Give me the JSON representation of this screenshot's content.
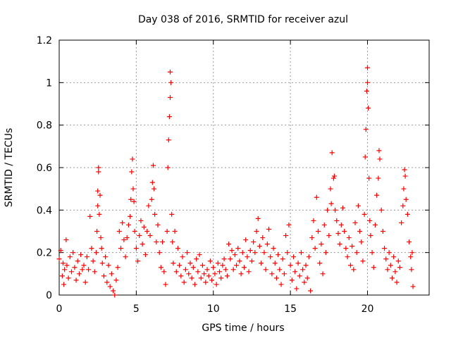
{
  "chart_data": {
    "type": "scatter",
    "title": "Day 038 of 2016, SRMTID for receiver azul",
    "xlabel": "GPS time / hours",
    "ylabel": "SRMTID / TECUs",
    "xlim": [
      0,
      24
    ],
    "ylim": [
      0,
      1.2
    ],
    "xticks": [
      0,
      5,
      10,
      15,
      20
    ],
    "yticks": [
      0,
      0.2,
      0.4,
      0.6,
      0.8,
      1,
      1.2
    ],
    "xtick_labels": [
      "0",
      "5",
      "10",
      "15",
      "20"
    ],
    "ytick_labels": [
      "0",
      "0.2",
      "0.4",
      "0.6",
      "0.8",
      "1",
      "1.2"
    ],
    "grid": true,
    "marker": "+",
    "colors": {
      "series": "#ff0000",
      "grid": "#999999",
      "axis": "#000000"
    },
    "series": [
      {
        "name": "SRMTID",
        "points": [
          [
            0.0,
            0.17
          ],
          [
            0.1,
            0.21
          ],
          [
            0.2,
            0.09
          ],
          [
            0.25,
            0.15
          ],
          [
            0.3,
            0.05
          ],
          [
            0.35,
            0.12
          ],
          [
            0.45,
            0.26
          ],
          [
            0.5,
            0.14
          ],
          [
            0.6,
            0.08
          ],
          [
            0.7,
            0.18
          ],
          [
            0.8,
            0.11
          ],
          [
            0.9,
            0.2
          ],
          [
            1.0,
            0.13
          ],
          [
            1.1,
            0.07
          ],
          [
            1.2,
            0.16
          ],
          [
            1.3,
            0.1
          ],
          [
            1.4,
            0.19
          ],
          [
            1.5,
            0.12
          ],
          [
            1.6,
            0.14
          ],
          [
            1.7,
            0.06
          ],
          [
            1.8,
            0.18
          ],
          [
            1.9,
            0.12
          ],
          [
            2.0,
            0.37
          ],
          [
            2.1,
            0.22
          ],
          [
            2.2,
            0.16
          ],
          [
            2.3,
            0.11
          ],
          [
            2.4,
            0.2
          ],
          [
            2.45,
            0.3
          ],
          [
            2.5,
            0.42
          ],
          [
            2.5,
            0.49
          ],
          [
            2.55,
            0.6
          ],
          [
            2.55,
            0.58
          ],
          [
            2.6,
            0.38
          ],
          [
            2.65,
            0.47
          ],
          [
            2.7,
            0.27
          ],
          [
            2.75,
            0.22
          ],
          [
            2.8,
            0.15
          ],
          [
            2.9,
            0.09
          ],
          [
            3.0,
            0.18
          ],
          [
            3.1,
            0.06
          ],
          [
            3.2,
            0.14
          ],
          [
            3.3,
            0.04
          ],
          [
            3.4,
            0.1
          ],
          [
            3.5,
            0.02
          ],
          [
            3.6,
            0.0
          ],
          [
            3.7,
            0.07
          ],
          [
            3.8,
            0.13
          ],
          [
            3.9,
            0.3
          ],
          [
            4.0,
            0.22
          ],
          [
            4.1,
            0.34
          ],
          [
            4.2,
            0.26
          ],
          [
            4.3,
            0.18
          ],
          [
            4.4,
            0.27
          ],
          [
            4.5,
            0.33
          ],
          [
            4.6,
            0.37
          ],
          [
            4.65,
            0.45
          ],
          [
            4.7,
            0.58
          ],
          [
            4.75,
            0.64
          ],
          [
            4.8,
            0.5
          ],
          [
            4.85,
            0.44
          ],
          [
            4.9,
            0.3
          ],
          [
            5.0,
            0.22
          ],
          [
            5.1,
            0.16
          ],
          [
            5.2,
            0.28
          ],
          [
            5.3,
            0.35
          ],
          [
            5.4,
            0.24
          ],
          [
            5.5,
            0.32
          ],
          [
            5.6,
            0.19
          ],
          [
            5.7,
            0.3
          ],
          [
            5.8,
            0.42
          ],
          [
            5.9,
            0.28
          ],
          [
            6.0,
            0.45
          ],
          [
            6.05,
            0.53
          ],
          [
            6.1,
            0.61
          ],
          [
            6.15,
            0.5
          ],
          [
            6.2,
            0.38
          ],
          [
            6.3,
            0.25
          ],
          [
            6.4,
            0.33
          ],
          [
            6.5,
            0.2
          ],
          [
            6.6,
            0.13
          ],
          [
            6.7,
            0.25
          ],
          [
            6.8,
            0.11
          ],
          [
            6.9,
            0.05
          ],
          [
            7.0,
            0.3
          ],
          [
            7.05,
            0.6
          ],
          [
            7.1,
            0.73
          ],
          [
            7.15,
            0.84
          ],
          [
            7.2,
            0.93
          ],
          [
            7.2,
            1.05
          ],
          [
            7.25,
            1.0
          ],
          [
            7.3,
            0.38
          ],
          [
            7.35,
            0.25
          ],
          [
            7.4,
            0.15
          ],
          [
            7.5,
            0.3
          ],
          [
            7.6,
            0.11
          ],
          [
            7.7,
            0.22
          ],
          [
            7.8,
            0.14
          ],
          [
            7.9,
            0.09
          ],
          [
            8.0,
            0.18
          ],
          [
            8.1,
            0.06
          ],
          [
            8.2,
            0.12
          ],
          [
            8.3,
            0.2
          ],
          [
            8.4,
            0.1
          ],
          [
            8.5,
            0.15
          ],
          [
            8.6,
            0.08
          ],
          [
            8.7,
            0.13
          ],
          [
            8.8,
            0.05
          ],
          [
            8.9,
            0.17
          ],
          [
            9.0,
            0.11
          ],
          [
            9.1,
            0.19
          ],
          [
            9.2,
            0.08
          ],
          [
            9.3,
            0.14
          ],
          [
            9.4,
            0.1
          ],
          [
            9.5,
            0.06
          ],
          [
            9.6,
            0.12
          ],
          [
            9.7,
            0.09
          ],
          [
            9.8,
            0.16
          ],
          [
            9.9,
            0.07
          ],
          [
            10.0,
            0.13
          ],
          [
            10.1,
            0.1
          ],
          [
            10.2,
            0.05
          ],
          [
            10.3,
            0.15
          ],
          [
            10.4,
            0.11
          ],
          [
            10.5,
            0.08
          ],
          [
            10.6,
            0.14
          ],
          [
            10.7,
            0.17
          ],
          [
            10.8,
            0.12
          ],
          [
            10.9,
            0.09
          ],
          [
            11.0,
            0.24
          ],
          [
            11.1,
            0.17
          ],
          [
            11.2,
            0.21
          ],
          [
            11.3,
            0.12
          ],
          [
            11.4,
            0.19
          ],
          [
            11.5,
            0.14
          ],
          [
            11.6,
            0.22
          ],
          [
            11.7,
            0.16
          ],
          [
            11.8,
            0.1
          ],
          [
            11.9,
            0.2
          ],
          [
            12.0,
            0.13
          ],
          [
            12.1,
            0.26
          ],
          [
            12.2,
            0.18
          ],
          [
            12.3,
            0.11
          ],
          [
            12.4,
            0.21
          ],
          [
            12.5,
            0.16
          ],
          [
            12.6,
            0.25
          ],
          [
            12.7,
            0.2
          ],
          [
            12.8,
            0.3
          ],
          [
            12.9,
            0.36
          ],
          [
            13.0,
            0.23
          ],
          [
            13.1,
            0.15
          ],
          [
            13.2,
            0.27
          ],
          [
            13.3,
            0.2
          ],
          [
            13.4,
            0.12
          ],
          [
            13.5,
            0.24
          ],
          [
            13.6,
            0.31
          ],
          [
            13.7,
            0.18
          ],
          [
            13.8,
            0.1
          ],
          [
            13.9,
            0.22
          ],
          [
            14.0,
            0.15
          ],
          [
            14.1,
            0.08
          ],
          [
            14.2,
            0.19
          ],
          [
            14.3,
            0.12
          ],
          [
            14.4,
            0.05
          ],
          [
            14.5,
            0.17
          ],
          [
            14.6,
            0.1
          ],
          [
            14.7,
            0.28
          ],
          [
            14.8,
            0.2
          ],
          [
            14.9,
            0.33
          ],
          [
            15.0,
            0.14
          ],
          [
            15.1,
            0.07
          ],
          [
            15.2,
            0.18
          ],
          [
            15.3,
            0.11
          ],
          [
            15.4,
            0.03
          ],
          [
            15.5,
            0.15
          ],
          [
            15.6,
            0.09
          ],
          [
            15.7,
            0.2
          ],
          [
            15.8,
            0.12
          ],
          [
            15.9,
            0.06
          ],
          [
            16.0,
            0.14
          ],
          [
            16.1,
            0.08
          ],
          [
            16.2,
            0.18
          ],
          [
            16.3,
            0.02
          ],
          [
            16.4,
            0.27
          ],
          [
            16.5,
            0.35
          ],
          [
            16.6,
            0.22
          ],
          [
            16.7,
            0.46
          ],
          [
            16.8,
            0.3
          ],
          [
            16.9,
            0.15
          ],
          [
            17.0,
            0.24
          ],
          [
            17.1,
            0.1
          ],
          [
            17.2,
            0.33
          ],
          [
            17.3,
            0.2
          ],
          [
            17.4,
            0.4
          ],
          [
            17.5,
            0.28
          ],
          [
            17.6,
            0.5
          ],
          [
            17.65,
            0.43
          ],
          [
            17.7,
            0.67
          ],
          [
            17.8,
            0.55
          ],
          [
            17.85,
            0.56
          ],
          [
            17.9,
            0.4
          ],
          [
            18.0,
            0.35
          ],
          [
            18.1,
            0.29
          ],
          [
            18.2,
            0.24
          ],
          [
            18.3,
            0.33
          ],
          [
            18.4,
            0.41
          ],
          [
            18.5,
            0.3
          ],
          [
            18.6,
            0.22
          ],
          [
            18.7,
            0.18
          ],
          [
            18.8,
            0.27
          ],
          [
            18.9,
            0.14
          ],
          [
            19.0,
            0.23
          ],
          [
            19.1,
            0.12
          ],
          [
            19.2,
            0.34
          ],
          [
            19.3,
            0.2
          ],
          [
            19.4,
            0.42
          ],
          [
            19.5,
            0.3
          ],
          [
            19.6,
            0.25
          ],
          [
            19.7,
            0.16
          ],
          [
            19.8,
            0.38
          ],
          [
            19.85,
            0.65
          ],
          [
            19.9,
            0.78
          ],
          [
            19.95,
            0.96
          ],
          [
            20.0,
            1.07
          ],
          [
            20.0,
            1.0
          ],
          [
            20.05,
            0.88
          ],
          [
            20.1,
            0.55
          ],
          [
            20.15,
            0.35
          ],
          [
            20.2,
            0.28
          ],
          [
            20.3,
            0.2
          ],
          [
            20.4,
            0.13
          ],
          [
            20.5,
            0.33
          ],
          [
            20.6,
            0.47
          ],
          [
            20.7,
            0.55
          ],
          [
            20.75,
            0.68
          ],
          [
            20.8,
            0.64
          ],
          [
            20.9,
            0.4
          ],
          [
            21.0,
            0.3
          ],
          [
            21.1,
            0.22
          ],
          [
            21.2,
            0.17
          ],
          [
            21.3,
            0.12
          ],
          [
            21.4,
            0.2
          ],
          [
            21.5,
            0.14
          ],
          [
            21.6,
            0.08
          ],
          [
            21.7,
            0.18
          ],
          [
            21.8,
            0.11
          ],
          [
            21.9,
            0.06
          ],
          [
            22.0,
            0.16
          ],
          [
            22.1,
            0.13
          ],
          [
            22.2,
            0.34
          ],
          [
            22.3,
            0.42
          ],
          [
            22.35,
            0.5
          ],
          [
            22.4,
            0.59
          ],
          [
            22.45,
            0.56
          ],
          [
            22.5,
            0.45
          ],
          [
            22.6,
            0.38
          ],
          [
            22.7,
            0.25
          ],
          [
            22.8,
            0.18
          ],
          [
            22.85,
            0.12
          ],
          [
            22.9,
            0.2
          ],
          [
            22.95,
            0.04
          ]
        ]
      }
    ]
  }
}
